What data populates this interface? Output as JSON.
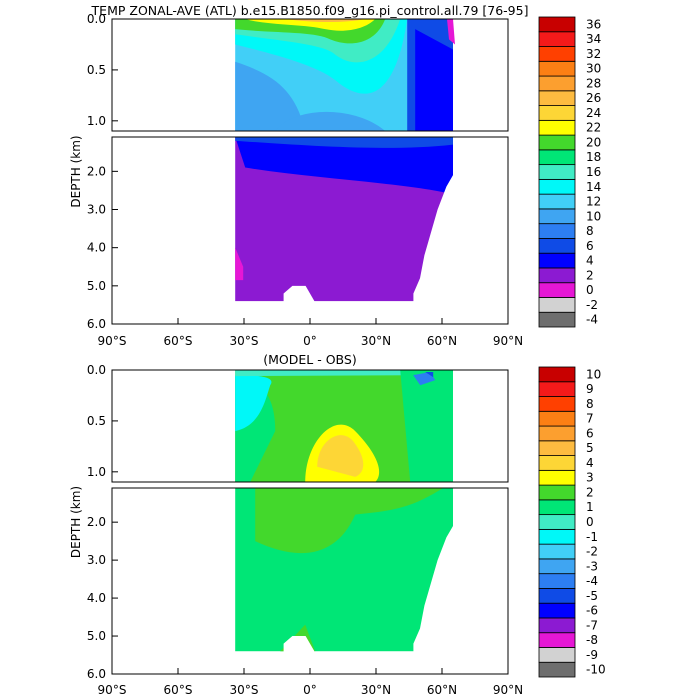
{
  "chart_data": [
    {
      "type": "heatmap",
      "title": "TEMP ZONAL-AVE (ATL) b.e15.B1850.f09_g16.pi_control.all.79 [76-95]",
      "ylabel": "DEPTH (km)",
      "x_ticks": [
        "90°S",
        "60°S",
        "30°S",
        "0°",
        "30°N",
        "60°N",
        "90°N"
      ],
      "xlim": [
        -90,
        90
      ],
      "upper_ylim": [
        0,
        1.1
      ],
      "upper_y_ticks": [
        "0.0",
        "0.5",
        "1.0"
      ],
      "lower_ylim": [
        1.1,
        6.0
      ],
      "lower_y_ticks": [
        "2.0",
        "3.0",
        "4.0",
        "5.0",
        "6.0"
      ],
      "colorbar_labels": [
        "-4",
        "-2",
        "0",
        "2",
        "4",
        "6",
        "8",
        "10",
        "12",
        "14",
        "16",
        "18",
        "20",
        "22",
        "24",
        "26",
        "28",
        "30",
        "32",
        "34",
        "36"
      ],
      "colors": [
        "#6e6e6e",
        "#d2d2d2",
        "#e617d5",
        "#8c1ad2",
        "#0000ff",
        "#0f4be6",
        "#2d7ef2",
        "#3fa5f2",
        "#41cff7",
        "#00f8f8",
        "#40ecc5",
        "#00e676",
        "#43d82c",
        "#ffff00",
        "#fdd636",
        "#fdbb40",
        "#fc9f2f",
        "#fc7f14",
        "#ff4000",
        "#f51a1a",
        "#c80000"
      ],
      "basin_lat_range": [
        -34,
        65
      ],
      "bottom_depth_km": 5.4
    },
    {
      "type": "heatmap",
      "title": "(MODEL - OBS)",
      "ylabel": "DEPTH (km)",
      "x_ticks": [
        "90°S",
        "60°S",
        "30°S",
        "0°",
        "30°N",
        "60°N",
        "90°N"
      ],
      "xlim": [
        -90,
        90
      ],
      "upper_ylim": [
        0,
        1.1
      ],
      "upper_y_ticks": [
        "0.0",
        "0.5",
        "1.0"
      ],
      "lower_ylim": [
        1.1,
        6.0
      ],
      "lower_y_ticks": [
        "2.0",
        "3.0",
        "4.0",
        "5.0",
        "6.0"
      ],
      "colorbar_labels": [
        "-10",
        "-9",
        "-8",
        "-7",
        "-6",
        "-5",
        "-4",
        "-3",
        "-2",
        "-1",
        "0",
        "1",
        "2",
        "3",
        "4",
        "5",
        "6",
        "7",
        "8",
        "9",
        "10"
      ],
      "colors": [
        "#6e6e6e",
        "#d2d2d2",
        "#e617d5",
        "#8c1ad2",
        "#0000ff",
        "#0f4be6",
        "#2d7ef2",
        "#3fa5f2",
        "#41cff7",
        "#00f8f8",
        "#40ecc5",
        "#00e676",
        "#43d82c",
        "#ffff00",
        "#fdd636",
        "#fdbb40",
        "#fc9f2f",
        "#fc7f14",
        "#ff4000",
        "#f51a1a",
        "#c80000"
      ],
      "basin_lat_range": [
        -34,
        65
      ],
      "bottom_depth_km": 5.4
    }
  ]
}
